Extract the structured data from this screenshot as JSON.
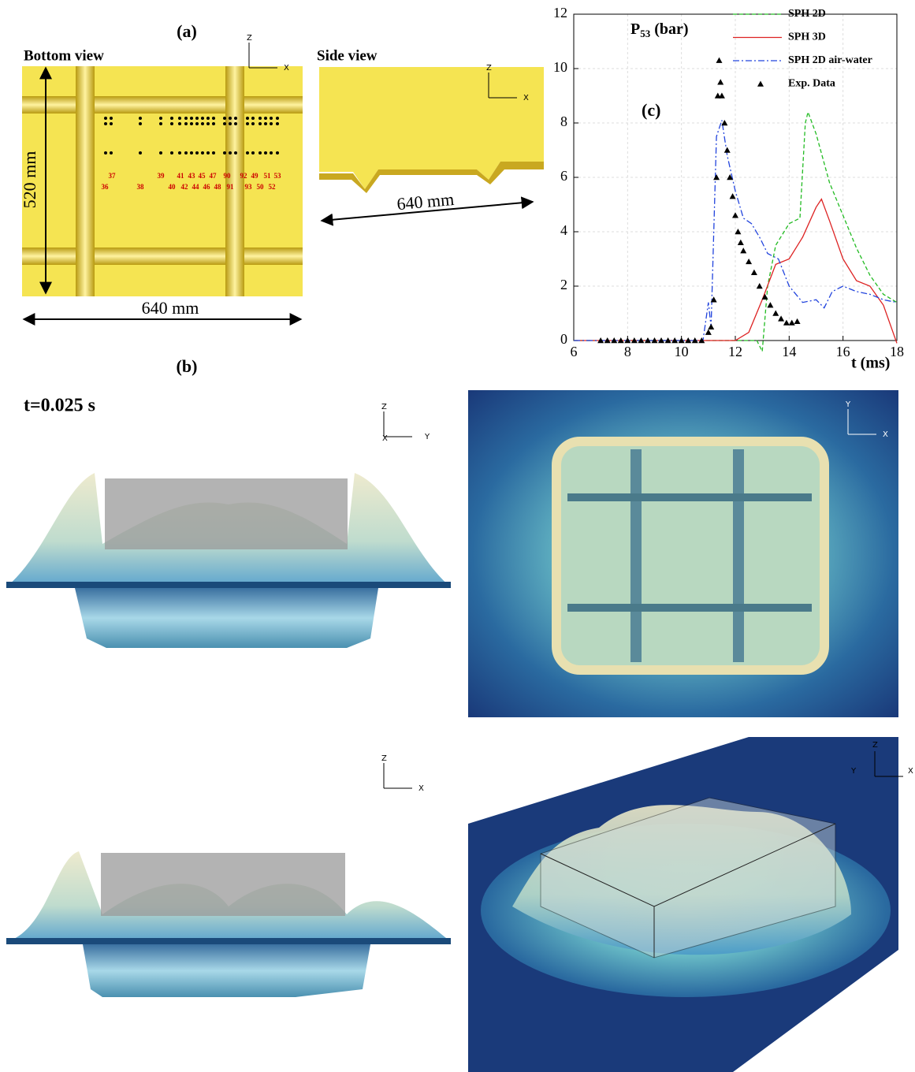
{
  "figure": {
    "panel_a": "(a)",
    "bottom_view": "Bottom view",
    "side_view": "Side view",
    "height_dim": "520 mm",
    "width_dim_bottom": "640 mm",
    "width_dim_side": "640 mm",
    "sensors_top": [
      "37",
      "39",
      "41",
      "43",
      "45",
      "47",
      "90",
      "92",
      "49",
      "51",
      "53"
    ],
    "sensors_bottom": [
      "36",
      "38",
      "40",
      "42",
      "44",
      "46",
      "48",
      "91",
      "93",
      "50",
      "52"
    ],
    "panel_b": "(b)",
    "time": "t=0.025 s",
    "triads": [
      [
        "Z",
        "X"
      ],
      [
        "Z",
        "X"
      ],
      [
        "Z",
        "X",
        "Y"
      ],
      [
        "Y",
        "X"
      ],
      [
        "Z",
        "X"
      ],
      [
        "Z",
        "Y",
        "X"
      ]
    ]
  },
  "chart_data": {
    "type": "line",
    "annotation": "(c)",
    "ylabel": "P",
    "ylabel_sub": "53",
    "ylabel_unit": "(bar)",
    "xlabel": "t (ms)",
    "xlim": [
      6,
      18
    ],
    "ylim": [
      0,
      12
    ],
    "xticks": [
      6,
      8,
      10,
      12,
      14,
      16,
      18
    ],
    "yticks": [
      0,
      2,
      4,
      6,
      8,
      10,
      12
    ],
    "grid": true,
    "series": [
      {
        "name": "SPH 2D",
        "color": "#22bb22",
        "style": "dashed",
        "x": [
          6,
          12.8,
          13.0,
          13.2,
          13.5,
          14.0,
          14.4,
          14.6,
          14.7,
          15.0,
          15.5,
          16.0,
          16.5,
          17.0,
          17.5,
          18.0
        ],
        "values": [
          0,
          0,
          -0.4,
          2.0,
          3.5,
          4.3,
          4.5,
          8.0,
          8.4,
          7.6,
          5.8,
          4.6,
          3.4,
          2.4,
          1.7,
          1.4
        ]
      },
      {
        "name": "SPH 3D",
        "color": "#dd2222",
        "style": "solid",
        "x": [
          6,
          12.0,
          12.5,
          13.0,
          13.5,
          14.0,
          14.5,
          15.0,
          15.2,
          15.5,
          16.0,
          16.5,
          17.0,
          17.5,
          18.0
        ],
        "values": [
          0,
          0,
          0.3,
          1.5,
          2.8,
          3.0,
          3.8,
          4.9,
          5.2,
          4.4,
          3.0,
          2.2,
          2.0,
          1.3,
          -0.1
        ]
      },
      {
        "name": "SPH 2D air-water",
        "color": "#2244dd",
        "style": "dashdot",
        "x": [
          6,
          10.8,
          11.0,
          11.1,
          11.3,
          11.5,
          11.7,
          12.0,
          12.3,
          12.6,
          12.9,
          13.2,
          13.6,
          14.0,
          14.5,
          15.0,
          15.3,
          15.6,
          16.0,
          16.5,
          17.0,
          17.5,
          18.0
        ],
        "values": [
          0,
          0,
          1.4,
          0.5,
          7.5,
          8.1,
          6.8,
          5.5,
          4.5,
          4.3,
          3.8,
          3.2,
          3.0,
          2.0,
          1.4,
          1.5,
          1.2,
          1.8,
          2.0,
          1.8,
          1.7,
          1.5,
          1.4
        ]
      },
      {
        "name": "Exp. Data",
        "color": "#000000",
        "style": "markers",
        "x": [
          7.0,
          7.25,
          7.5,
          7.75,
          8.0,
          8.25,
          8.5,
          8.75,
          9.0,
          9.25,
          9.5,
          9.75,
          10.0,
          10.25,
          10.5,
          10.75,
          11.0,
          11.1,
          11.2,
          11.3,
          11.35,
          11.4,
          11.45,
          11.5,
          11.6,
          11.7,
          11.8,
          11.9,
          12.0,
          12.1,
          12.2,
          12.3,
          12.5,
          12.7,
          12.9,
          13.1,
          13.3,
          13.5,
          13.7,
          13.9,
          14.1,
          14.3
        ],
        "values": [
          0,
          0,
          0,
          0,
          0,
          0,
          0,
          0,
          0,
          0,
          0,
          0,
          0,
          0,
          0,
          0,
          0.3,
          0.5,
          1.5,
          6,
          9,
          10.3,
          9.5,
          9,
          8,
          7,
          6,
          5.3,
          4.6,
          4.0,
          3.6,
          3.3,
          2.9,
          2.5,
          2.0,
          1.6,
          1.3,
          1.0,
          0.8,
          0.65,
          0.65,
          0.7
        ]
      }
    ]
  }
}
